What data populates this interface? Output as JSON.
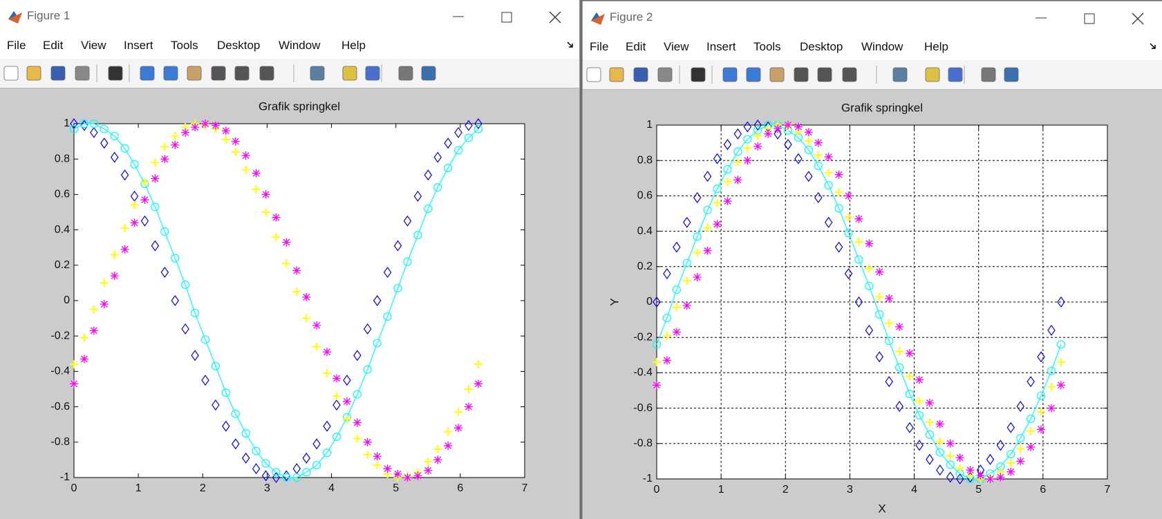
{
  "windows": [
    {
      "title": "Figure 1",
      "menu": [
        "File",
        "Edit",
        "View",
        "Insert",
        "Tools",
        "Desktop",
        "Window",
        "Help"
      ]
    },
    {
      "title": "Figure 2",
      "menu": [
        "File",
        "Edit",
        "View",
        "Insert",
        "Tools",
        "Desktop",
        "Window",
        "Help"
      ]
    }
  ],
  "chart_data": [
    {
      "type": "scatter",
      "title": "Grafik springkel",
      "grid": false,
      "xlim": [
        0,
        7
      ],
      "ylim": [
        -1,
        1
      ],
      "xticks": [
        0,
        1,
        2,
        3,
        4,
        5,
        6,
        7
      ],
      "yticks": [
        -1,
        -0.8,
        -0.6,
        -0.4,
        -0.2,
        0,
        0.2,
        0.4,
        0.6,
        0.8,
        1
      ],
      "x": [
        0,
        0.16,
        0.31,
        0.47,
        0.63,
        0.79,
        0.94,
        1.1,
        1.26,
        1.41,
        1.57,
        1.73,
        1.88,
        2.04,
        2.2,
        2.36,
        2.51,
        2.67,
        2.83,
        2.98,
        3.14,
        3.3,
        3.46,
        3.61,
        3.77,
        3.93,
        4.08,
        4.24,
        4.4,
        4.56,
        4.71,
        4.87,
        5.03,
        5.18,
        5.34,
        5.5,
        5.65,
        5.81,
        5.97,
        6.13,
        6.28
      ],
      "series": [
        {
          "color": "#0000ff",
          "marker": "diamond",
          "line": false,
          "values": [
            1,
            0.99,
            0.95,
            0.89,
            0.81,
            0.71,
            0.59,
            0.45,
            0.31,
            0.16,
            0,
            -0.16,
            -0.31,
            -0.45,
            -0.59,
            -0.71,
            -0.81,
            -0.89,
            -0.95,
            -0.99,
            -1,
            -0.99,
            -0.95,
            -0.89,
            -0.81,
            -0.71,
            -0.59,
            -0.45,
            -0.31,
            -0.16,
            0,
            0.16,
            0.31,
            0.45,
            0.59,
            0.71,
            0.81,
            0.89,
            0.95,
            0.99,
            1
          ]
        },
        {
          "color": "#00ffff",
          "marker": "circle",
          "line": true,
          "values": [
            0.97,
            1,
            1,
            0.97,
            0.93,
            0.86,
            0.77,
            0.66,
            0.53,
            0.39,
            0.24,
            0.09,
            -0.07,
            -0.22,
            -0.37,
            -0.52,
            -0.64,
            -0.75,
            -0.85,
            -0.92,
            -0.97,
            -1,
            -1,
            -0.97,
            -0.93,
            -0.86,
            -0.77,
            -0.66,
            -0.53,
            -0.39,
            -0.24,
            -0.09,
            0.07,
            0.22,
            0.37,
            0.52,
            0.64,
            0.75,
            0.85,
            0.92,
            0.97
          ]
        },
        {
          "color": "#ffff00",
          "marker": "plus",
          "line": false,
          "values": [
            -0.36,
            -0.21,
            -0.05,
            0.1,
            0.26,
            0.41,
            0.54,
            0.67,
            0.78,
            0.87,
            0.93,
            0.98,
            1,
            0.99,
            0.97,
            0.91,
            0.84,
            0.74,
            0.63,
            0.5,
            0.36,
            0.21,
            0.05,
            -0.1,
            -0.26,
            -0.41,
            -0.54,
            -0.67,
            -0.78,
            -0.87,
            -0.93,
            -0.98,
            -1,
            -0.99,
            -0.97,
            -0.91,
            -0.84,
            -0.74,
            -0.63,
            -0.5,
            -0.36
          ]
        },
        {
          "color": "#ff00ff",
          "marker": "star",
          "line": false,
          "values": [
            -0.47,
            -0.33,
            -0.17,
            -0.02,
            0.14,
            0.29,
            0.44,
            0.57,
            0.69,
            0.8,
            0.88,
            0.95,
            0.98,
            1,
            0.99,
            0.96,
            0.9,
            0.82,
            0.72,
            0.6,
            0.47,
            0.33,
            0.17,
            0.02,
            -0.14,
            -0.29,
            -0.44,
            -0.57,
            -0.69,
            -0.8,
            -0.88,
            -0.95,
            -0.98,
            -1,
            -0.99,
            -0.96,
            -0.9,
            -0.82,
            -0.72,
            -0.6,
            -0.47
          ]
        }
      ]
    },
    {
      "type": "scatter",
      "title": "Grafik springkel",
      "xlabel": "X",
      "ylabel": "Y",
      "grid": true,
      "xlim": [
        0,
        7
      ],
      "ylim": [
        -1,
        1
      ],
      "xticks": [
        0,
        1,
        2,
        3,
        4,
        5,
        6,
        7
      ],
      "yticks": [
        -1,
        -0.8,
        -0.6,
        -0.4,
        -0.2,
        0,
        0.2,
        0.4,
        0.6,
        0.8,
        1
      ],
      "x": [
        0,
        0.16,
        0.31,
        0.47,
        0.63,
        0.79,
        0.94,
        1.1,
        1.26,
        1.41,
        1.57,
        1.73,
        1.88,
        2.04,
        2.2,
        2.36,
        2.51,
        2.67,
        2.83,
        2.98,
        3.14,
        3.3,
        3.46,
        3.61,
        3.77,
        3.93,
        4.08,
        4.24,
        4.4,
        4.56,
        4.71,
        4.87,
        5.03,
        5.18,
        5.34,
        5.5,
        5.65,
        5.81,
        5.97,
        6.13,
        6.28
      ],
      "series": [
        {
          "color": "#0000ff",
          "marker": "diamond",
          "line": false,
          "values": [
            0,
            0.16,
            0.31,
            0.45,
            0.59,
            0.71,
            0.81,
            0.89,
            0.95,
            0.99,
            1,
            0.99,
            0.95,
            0.89,
            0.81,
            0.71,
            0.59,
            0.45,
            0.31,
            0.16,
            0,
            -0.16,
            -0.31,
            -0.45,
            -0.59,
            -0.71,
            -0.81,
            -0.89,
            -0.95,
            -0.99,
            -1,
            -0.99,
            -0.95,
            -0.89,
            -0.81,
            -0.71,
            -0.59,
            -0.45,
            -0.31,
            -0.16,
            0
          ]
        },
        {
          "color": "#00ffff",
          "marker": "circle",
          "line": true,
          "values": [
            -0.24,
            -0.09,
            0.07,
            0.22,
            0.37,
            0.52,
            0.64,
            0.75,
            0.85,
            0.92,
            0.97,
            1,
            1,
            0.97,
            0.93,
            0.86,
            0.77,
            0.66,
            0.53,
            0.39,
            0.24,
            0.09,
            -0.07,
            -0.22,
            -0.37,
            -0.52,
            -0.64,
            -0.75,
            -0.85,
            -0.92,
            -0.97,
            -1,
            -1,
            -0.97,
            -0.93,
            -0.86,
            -0.77,
            -0.66,
            -0.53,
            -0.39,
            -0.24
          ]
        },
        {
          "color": "#ffff00",
          "marker": "plus",
          "line": false,
          "values": [
            -0.34,
            -0.19,
            -0.03,
            0.12,
            0.28,
            0.42,
            0.56,
            0.68,
            0.79,
            0.87,
            0.94,
            0.98,
            1,
            0.99,
            0.96,
            0.91,
            0.83,
            0.73,
            0.62,
            0.48,
            0.34,
            0.19,
            0.03,
            -0.12,
            -0.28,
            -0.42,
            -0.56,
            -0.68,
            -0.79,
            -0.87,
            -0.94,
            -0.98,
            -1,
            -0.99,
            -0.96,
            -0.91,
            -0.83,
            -0.73,
            -0.62,
            -0.48,
            -0.34
          ]
        },
        {
          "color": "#ff00ff",
          "marker": "star",
          "line": false,
          "values": [
            -0.47,
            -0.33,
            -0.17,
            -0.02,
            0.14,
            0.29,
            0.44,
            0.57,
            0.69,
            0.8,
            0.88,
            0.95,
            0.98,
            1,
            0.99,
            0.96,
            0.9,
            0.82,
            0.72,
            0.6,
            0.47,
            0.33,
            0.17,
            0.02,
            -0.14,
            -0.29,
            -0.44,
            -0.57,
            -0.69,
            -0.8,
            -0.88,
            -0.95,
            -0.98,
            -1,
            -0.99,
            -0.96,
            -0.9,
            -0.82,
            -0.72,
            -0.6,
            -0.47
          ]
        }
      ]
    }
  ]
}
